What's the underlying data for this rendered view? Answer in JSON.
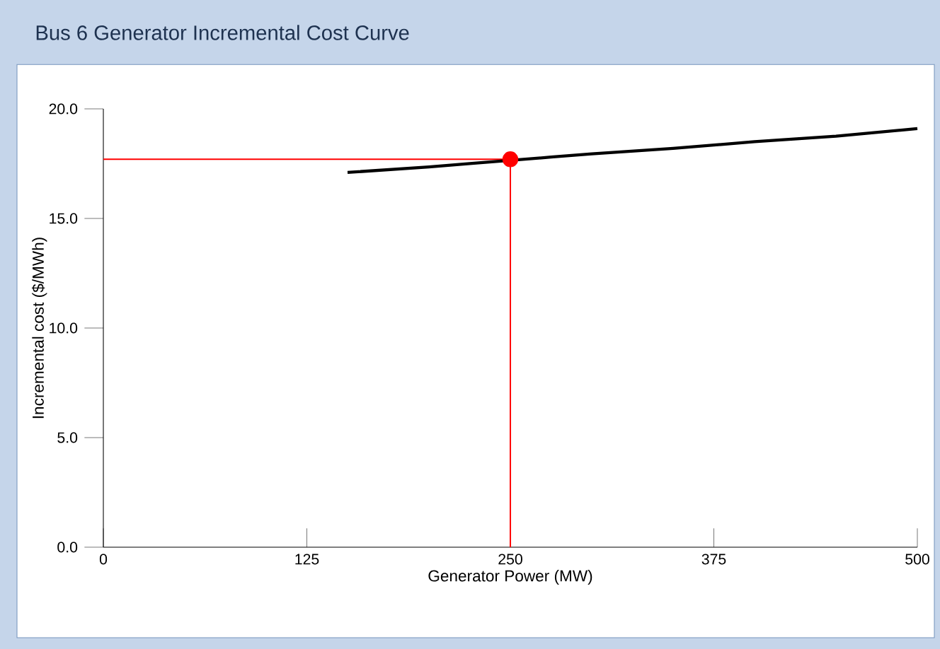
{
  "chart_data": {
    "type": "line",
    "title": "Bus 6 Generator Incremental Cost Curve",
    "xlabel": "Generator Power (MW)",
    "ylabel": "Incremental cost ($/MWh)",
    "xlim": [
      0,
      500
    ],
    "ylim": [
      0,
      20
    ],
    "xticks": [
      0,
      125,
      250,
      375,
      500
    ],
    "yticks": [
      {
        "value": 0,
        "label": "0.0"
      },
      {
        "value": 5,
        "label": "5.0"
      },
      {
        "value": 10,
        "label": "10.0"
      },
      {
        "value": 15,
        "label": "15.0"
      },
      {
        "value": 20,
        "label": "20.0"
      }
    ],
    "series": [
      {
        "color": "#000000",
        "line_style": "solid",
        "marker": "none",
        "x": [
          150,
          200,
          225,
          275,
          300,
          350,
          400,
          450,
          500
        ],
        "values": [
          17.1,
          17.35,
          17.5,
          17.8,
          17.95,
          18.2,
          18.5,
          18.75,
          19.1
        ]
      },
      {
        "type": "scatter",
        "color": "#ff0000",
        "marker": "circle",
        "x": [
          250
        ],
        "values": [
          17.7
        ]
      }
    ],
    "ref_lines": [
      {
        "axis": "x",
        "value": 250,
        "color": "#ff0000"
      },
      {
        "axis": "y",
        "value": 17.7,
        "color": "#ff0000"
      }
    ]
  }
}
